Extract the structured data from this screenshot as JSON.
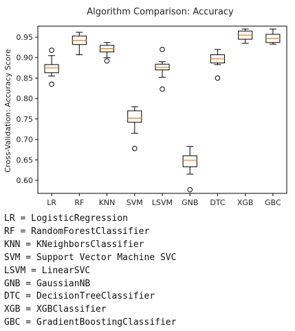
{
  "chart_data": {
    "type": "box",
    "title": "Algorithm Comparison: Accuracy",
    "xlabel": "",
    "ylabel": "Cross-Validation: Accuracy Score",
    "ylim": [
      0.568,
      0.977
    ],
    "yticks": [
      "0.60",
      "0.65",
      "0.70",
      "0.75",
      "0.80",
      "0.85",
      "0.90",
      "0.95"
    ],
    "categories": [
      "LR",
      "RF",
      "KNN",
      "SVM",
      "LSVM",
      "GNB",
      "DTC",
      "XGB",
      "GBC"
    ],
    "boxes": [
      {
        "label": "LR",
        "whisker_low": 0.855,
        "q1": 0.863,
        "median": 0.875,
        "q3": 0.883,
        "whisker_high": 0.905,
        "outliers": [
          0.918,
          0.835
        ]
      },
      {
        "label": "RF",
        "whisker_low": 0.907,
        "q1": 0.932,
        "median": 0.942,
        "q3": 0.953,
        "whisker_high": 0.962,
        "outliers": []
      },
      {
        "label": "KNN",
        "whisker_low": 0.9,
        "q1": 0.914,
        "median": 0.922,
        "q3": 0.93,
        "whisker_high": 0.937,
        "outliers": [
          0.892
        ]
      },
      {
        "label": "SVM",
        "whisker_low": 0.715,
        "q1": 0.742,
        "median": 0.752,
        "q3": 0.77,
        "whisker_high": 0.78,
        "outliers": [
          0.678
        ]
      },
      {
        "label": "LSVM",
        "whisker_low": 0.852,
        "q1": 0.87,
        "median": 0.876,
        "q3": 0.884,
        "whisker_high": 0.89,
        "outliers": [
          0.92,
          0.823
        ]
      },
      {
        "label": "GNB",
        "whisker_low": 0.615,
        "q1": 0.633,
        "median": 0.649,
        "q3": 0.66,
        "whisker_high": 0.683,
        "outliers": [
          0.577
        ]
      },
      {
        "label": "DTC",
        "whisker_low": 0.883,
        "q1": 0.887,
        "median": 0.897,
        "q3": 0.907,
        "whisker_high": 0.92,
        "outliers": [
          0.85
        ]
      },
      {
        "label": "XGB",
        "whisker_low": 0.935,
        "q1": 0.945,
        "median": 0.955,
        "q3": 0.965,
        "whisker_high": 0.97,
        "outliers": []
      },
      {
        "label": "GBC",
        "whisker_low": 0.933,
        "q1": 0.937,
        "median": 0.947,
        "q3": 0.957,
        "whisker_high": 0.97,
        "outliers": []
      }
    ],
    "colors": {
      "box": "#000000",
      "median": "#ff7f0e",
      "outlier": "#000000"
    }
  },
  "legend": [
    "LR = LogisticRegression",
    "RF = RandomForestClassifier",
    "KNN = KNeighborsClassifier",
    "SVM = Support Vector Machine SVC",
    "LSVM = LinearSVC",
    "GNB = GaussianNB",
    "DTC = DecisionTreeClassifier",
    "XGB = XGBClassifier",
    "GBC = GradientBoostingClassifier"
  ]
}
